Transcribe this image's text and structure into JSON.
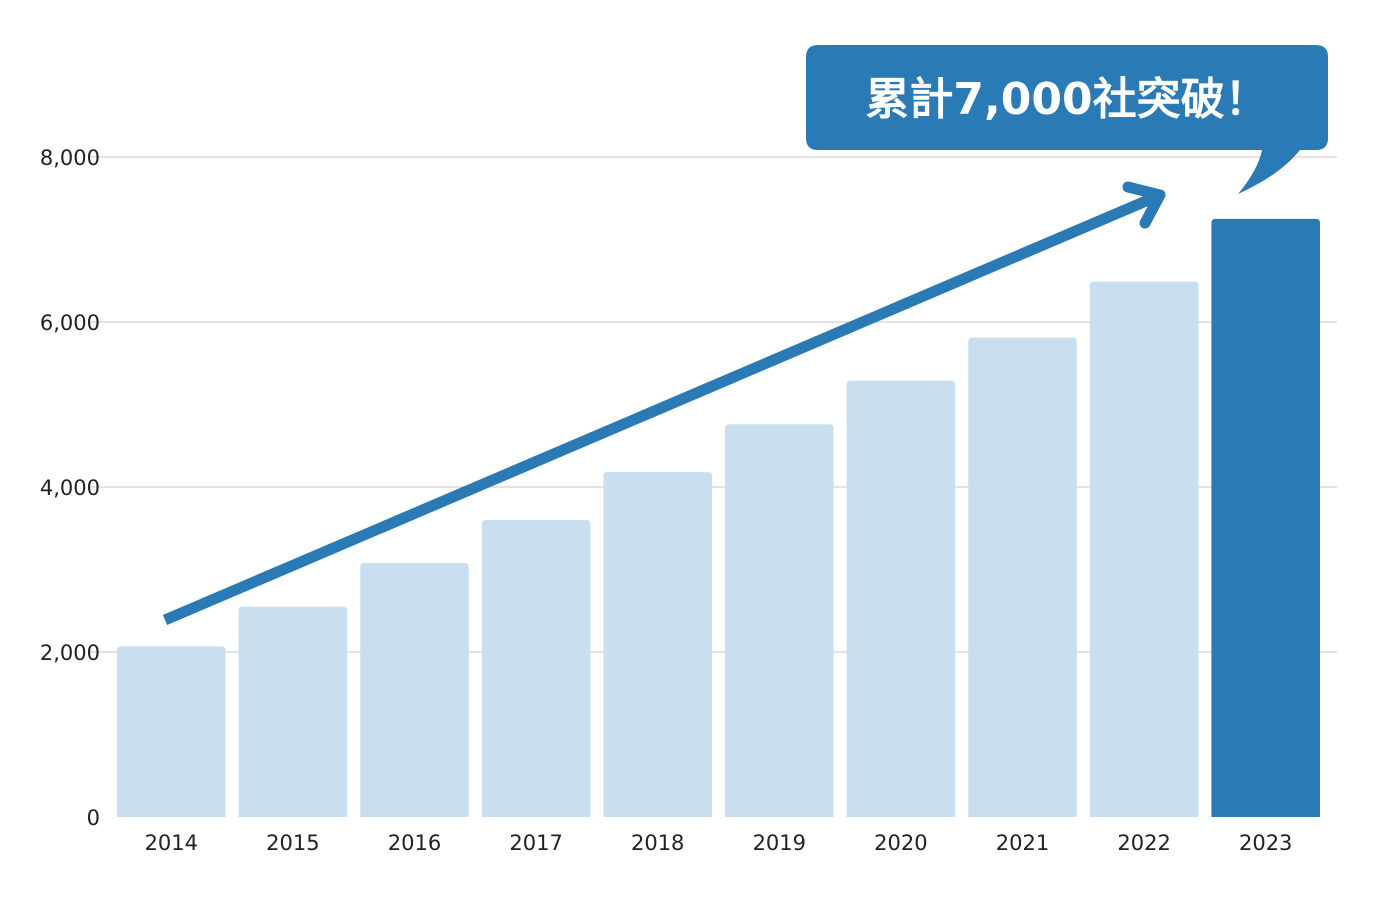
{
  "chart_data": {
    "type": "bar",
    "categories": [
      "2014",
      "2015",
      "2016",
      "2017",
      "2018",
      "2019",
      "2020",
      "2021",
      "2022",
      "2023"
    ],
    "values": [
      2070,
      2550,
      3080,
      3600,
      4180,
      4760,
      5290,
      5810,
      6490,
      7250
    ],
    "ylim": [
      0,
      8000
    ],
    "yticks": [
      0,
      2000,
      4000,
      6000,
      8000
    ],
    "ytick_labels": [
      "0",
      "2,000",
      "4,000",
      "6,000",
      "8,000"
    ],
    "grid": true,
    "highlight_index": 9,
    "colors": {
      "bar": "#c9dff0",
      "highlight": "#2a7ab5",
      "arrow": "#2a7ab5",
      "callout": "#2a7ab5",
      "grid": "#d4d4d4"
    },
    "annotation": "累計7,000社突破！"
  }
}
